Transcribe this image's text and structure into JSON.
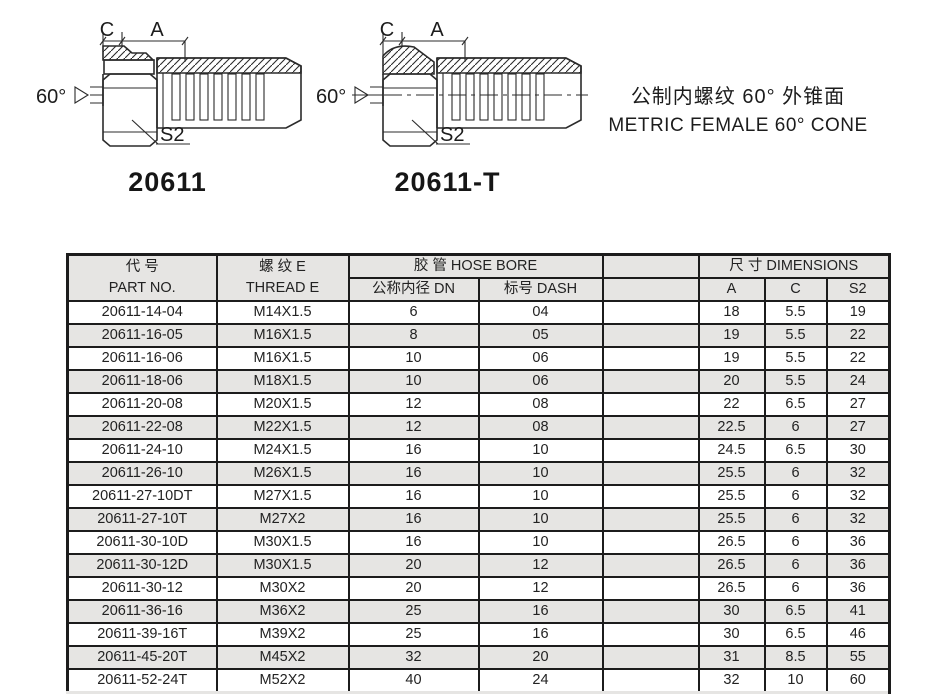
{
  "figures": [
    {
      "caption": "20611",
      "dim_c": "C",
      "dim_a": "A",
      "angle": "60°",
      "wrench": "S2"
    },
    {
      "caption": "20611-T",
      "dim_c": "C",
      "dim_a": "A",
      "angle": "60°",
      "wrench": "S2"
    }
  ],
  "title": {
    "zh": "公制内螺纹 60° 外锥面",
    "en": "METRIC FEMALE 60°  CONE"
  },
  "table": {
    "header": {
      "part_no_zh": "代 号",
      "part_no_en": "PART NO.",
      "thread_zh": "螺 纹 E",
      "thread_en": "THREAD  E",
      "hose_bore": "胶  管  HOSE BORE",
      "dn": "公称内径 DN",
      "dash": "标号 DASH",
      "dimensions": "尺  寸   DIMENSIONS",
      "col_a": "A",
      "col_c": "C",
      "col_s2": "S2"
    },
    "rows": [
      {
        "part_no": "20611-14-04",
        "thread": "M14X1.5",
        "dn": "6",
        "dash": "04",
        "a": "18",
        "c": "5.5",
        "s2": "19"
      },
      {
        "part_no": "20611-16-05",
        "thread": "M16X1.5",
        "dn": "8",
        "dash": "05",
        "a": "19",
        "c": "5.5",
        "s2": "22"
      },
      {
        "part_no": "20611-16-06",
        "thread": "M16X1.5",
        "dn": "10",
        "dash": "06",
        "a": "19",
        "c": "5.5",
        "s2": "22"
      },
      {
        "part_no": "20611-18-06",
        "thread": "M18X1.5",
        "dn": "10",
        "dash": "06",
        "a": "20",
        "c": "5.5",
        "s2": "24"
      },
      {
        "part_no": "20611-20-08",
        "thread": "M20X1.5",
        "dn": "12",
        "dash": "08",
        "a": "22",
        "c": "6.5",
        "s2": "27"
      },
      {
        "part_no": "20611-22-08",
        "thread": "M22X1.5",
        "dn": "12",
        "dash": "08",
        "a": "22.5",
        "c": "6",
        "s2": "27"
      },
      {
        "part_no": "20611-24-10",
        "thread": "M24X1.5",
        "dn": "16",
        "dash": "10",
        "a": "24.5",
        "c": "6.5",
        "s2": "30"
      },
      {
        "part_no": "20611-26-10",
        "thread": "M26X1.5",
        "dn": "16",
        "dash": "10",
        "a": "25.5",
        "c": "6",
        "s2": "32"
      },
      {
        "part_no": "20611-27-10DT",
        "thread": "M27X1.5",
        "dn": "16",
        "dash": "10",
        "a": "25.5",
        "c": "6",
        "s2": "32"
      },
      {
        "part_no": "20611-27-10T",
        "thread": "M27X2",
        "dn": "16",
        "dash": "10",
        "a": "25.5",
        "c": "6",
        "s2": "32"
      },
      {
        "part_no": "20611-30-10D",
        "thread": "M30X1.5",
        "dn": "16",
        "dash": "10",
        "a": "26.5",
        "c": "6",
        "s2": "36"
      },
      {
        "part_no": "20611-30-12D",
        "thread": "M30X1.5",
        "dn": "20",
        "dash": "12",
        "a": "26.5",
        "c": "6",
        "s2": "36"
      },
      {
        "part_no": "20611-30-12",
        "thread": "M30X2",
        "dn": "20",
        "dash": "12",
        "a": "26.5",
        "c": "6",
        "s2": "36"
      },
      {
        "part_no": "20611-36-16",
        "thread": "M36X2",
        "dn": "25",
        "dash": "16",
        "a": "30",
        "c": "6.5",
        "s2": "41"
      },
      {
        "part_no": "20611-39-16T",
        "thread": "M39X2",
        "dn": "25",
        "dash": "16",
        "a": "30",
        "c": "6.5",
        "s2": "46"
      },
      {
        "part_no": "20611-45-20T",
        "thread": "M45X2",
        "dn": "32",
        "dash": "20",
        "a": "31",
        "c": "8.5",
        "s2": "55"
      },
      {
        "part_no": "20611-52-24T",
        "thread": "M52X2",
        "dn": "40",
        "dash": "24",
        "a": "32",
        "c": "10",
        "s2": "60"
      }
    ]
  }
}
